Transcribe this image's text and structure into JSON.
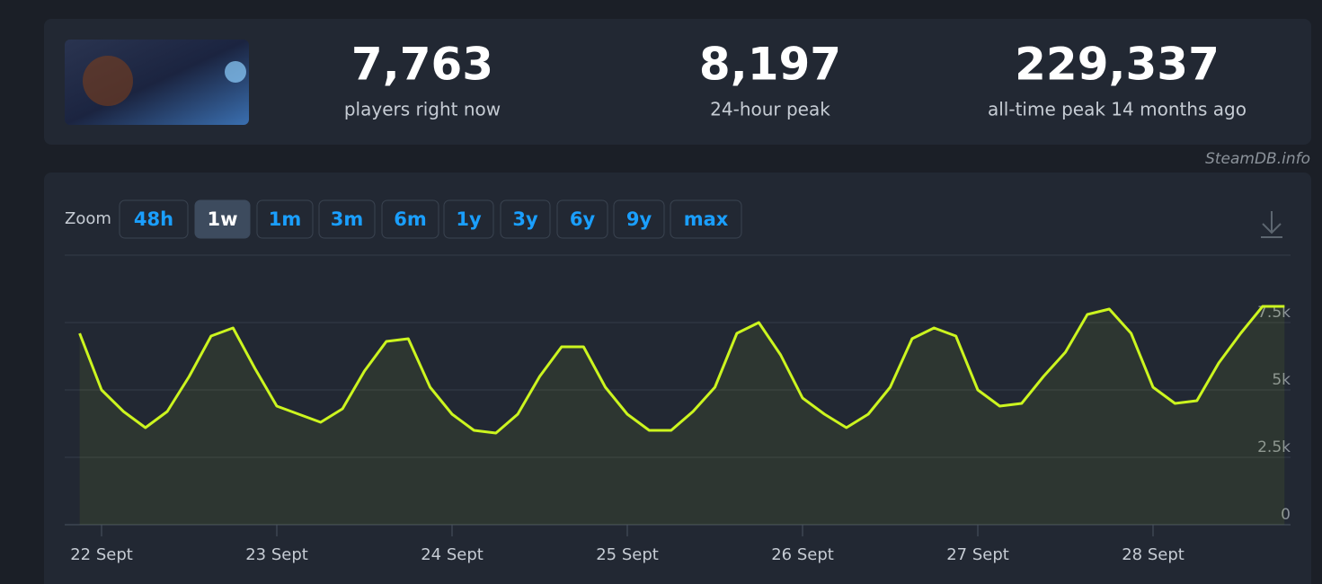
{
  "header": {
    "stats": [
      {
        "value": "7,763",
        "label": "players right now"
      },
      {
        "value": "8,197",
        "label": "24-hour peak"
      },
      {
        "value": "229,337",
        "label": "all-time peak 14 months ago"
      }
    ]
  },
  "watermark": "SteamDB.info",
  "zoom": {
    "label": "Zoom",
    "options": [
      "48h",
      "1w",
      "1m",
      "3m",
      "6m",
      "1y",
      "3y",
      "6y",
      "9y",
      "max"
    ],
    "active": 1
  },
  "chart_data": {
    "type": "line",
    "fill": true,
    "color": "#ccf51f",
    "categories": [
      null,
      "22 Sept",
      null,
      null,
      null,
      null,
      null,
      null,
      null,
      "23 Sept",
      null,
      null,
      null,
      null,
      null,
      null,
      null,
      "24 Sept",
      null,
      null,
      null,
      null,
      null,
      null,
      null,
      "25 Sept",
      null,
      null,
      null,
      null,
      null,
      null,
      null,
      "26 Sept",
      null,
      null,
      null,
      null,
      null,
      null,
      null,
      "27 Sept",
      null,
      null,
      null,
      null,
      null,
      null,
      null,
      "28 Sept",
      null,
      null,
      null,
      null,
      null,
      null
    ],
    "values": [
      7100,
      5000,
      4200,
      3600,
      4200,
      5500,
      7000,
      7300,
      5800,
      4400,
      4100,
      3800,
      4300,
      5700,
      6800,
      6900,
      5100,
      4100,
      3500,
      3400,
      4100,
      5500,
      6600,
      6600,
      5100,
      4100,
      3500,
      3500,
      4200,
      5100,
      7100,
      7500,
      6300,
      4700,
      4100,
      3600,
      4100,
      5100,
      6900,
      7300,
      7000,
      5000,
      4400,
      4500,
      5500,
      6400,
      7800,
      8000,
      7100,
      5100,
      4500,
      4600,
      6000,
      7100,
      8100,
      8100
    ],
    "ylim": [
      0,
      10000
    ],
    "yticks": [
      0,
      {
        "value": 2500,
        "label": "2.5k"
      },
      {
        "value": 5000,
        "label": "5k"
      },
      {
        "value": 7500,
        "label": "7.5k"
      }
    ],
    "grid": true
  }
}
